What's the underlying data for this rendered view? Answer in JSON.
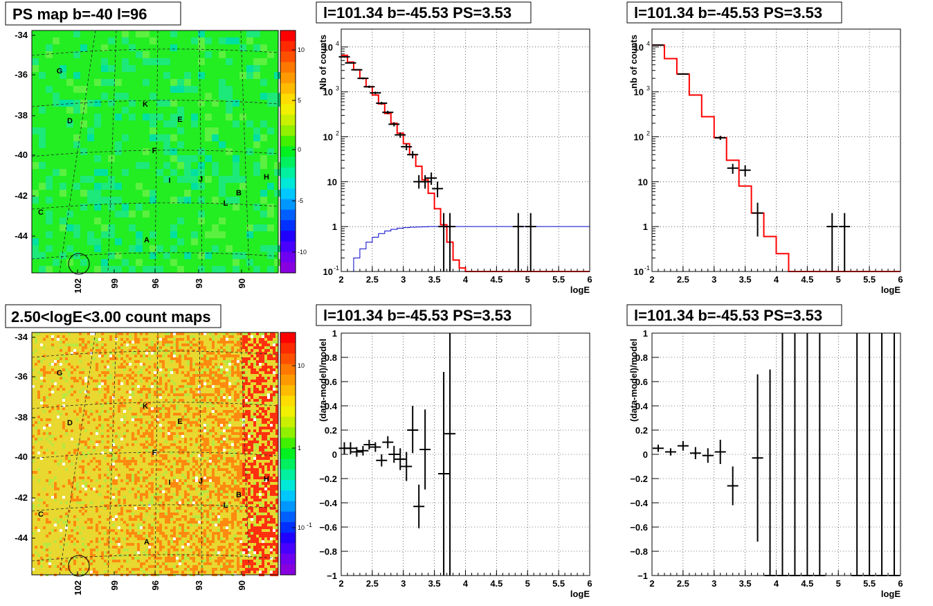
{
  "panels": {
    "map_top_title": "PS map b=-40 l=96",
    "map_bottom_title": "2.50<logE<3.00 count maps",
    "spec_title": "l=101.34 b=-45.53 PS=3.53"
  },
  "map": {
    "y_ticks": [
      "-34",
      "-36",
      "-38",
      "-40",
      "-42",
      "-44"
    ],
    "x_ticks": [
      "102",
      "99",
      "96",
      "93",
      "90"
    ],
    "source_labels": [
      {
        "label": "G"
      },
      {
        "label": "D"
      },
      {
        "label": "K"
      },
      {
        "label": "E"
      },
      {
        "label": "F"
      },
      {
        "label": "I"
      },
      {
        "label": "J"
      },
      {
        "label": "H"
      },
      {
        "label": "B"
      },
      {
        "label": "L"
      },
      {
        "label": "C"
      },
      {
        "label": "A"
      }
    ],
    "top_colorbar_ticks": [
      "10",
      "5",
      "0",
      "-5",
      "-10"
    ],
    "bottom_colorbar_ticks": [
      "10",
      "1",
      "10",
      "-1"
    ],
    "top_color": "#22ee22",
    "bottom_color": "#e8d830"
  },
  "chart_data": [
    {
      "type": "line",
      "title": "l=101.34 b=-45.53 PS=3.53",
      "xlabel": "logE",
      "ylabel": "Nb of counts",
      "yscale": "log",
      "xlim": [
        2,
        6
      ],
      "ylim": [
        0.1,
        25000
      ],
      "x_ticks": [
        "2",
        "2.5",
        "3",
        "3.5",
        "4",
        "4.5",
        "5",
        "5.5",
        "6"
      ],
      "y_ticks": [
        "10^{-1}",
        "1",
        "10",
        "10^{2}",
        "10^{3}",
        "10^{4}"
      ],
      "grid": true,
      "series": [
        {
          "color": "#ff0000",
          "kind": "step",
          "bin_edges": [
            2,
            2.1,
            2.2,
            2.3,
            2.4,
            2.5,
            2.6,
            2.7,
            2.8,
            2.9,
            3.0,
            3.1,
            3.2,
            3.3,
            3.4,
            3.5,
            3.6,
            3.7,
            3.8,
            3.9,
            4.0,
            6.0
          ],
          "values": [
            6500,
            4600,
            3100,
            2000,
            1300,
            850,
            540,
            330,
            200,
            120,
            70,
            40,
            22,
            11,
            5.5,
            2.5,
            1.1,
            0.45,
            0.18,
            0.12,
            0.1
          ]
        },
        {
          "color": "#0000cc",
          "kind": "step",
          "bin_edges": [
            2.1,
            2.2,
            2.3,
            2.4,
            2.5,
            2.6,
            2.7,
            2.8,
            2.9,
            3.0,
            3.1,
            3.2,
            3.3,
            3.4,
            3.5,
            6.0
          ],
          "values": [
            0.1,
            0.2,
            0.32,
            0.45,
            0.58,
            0.7,
            0.8,
            0.87,
            0.92,
            0.95,
            0.97,
            0.98,
            0.99,
            1.0,
            1.0
          ]
        },
        {
          "color": "#000000",
          "kind": "points",
          "points": [
            {
              "x": 2.05,
              "y": 6000,
              "lo": 5800,
              "hi": 6200
            },
            {
              "x": 2.15,
              "y": 4400,
              "lo": 4250,
              "hi": 4550
            },
            {
              "x": 2.25,
              "y": 3100,
              "lo": 3000,
              "hi": 3200
            },
            {
              "x": 2.35,
              "y": 2000,
              "lo": 1900,
              "hi": 2100
            },
            {
              "x": 2.45,
              "y": 1300,
              "lo": 1220,
              "hi": 1380
            },
            {
              "x": 2.55,
              "y": 950,
              "lo": 890,
              "hi": 1010
            },
            {
              "x": 2.65,
              "y": 560,
              "lo": 520,
              "hi": 600
            },
            {
              "x": 2.75,
              "y": 350,
              "lo": 320,
              "hi": 380
            },
            {
              "x": 2.85,
              "y": 190,
              "lo": 170,
              "hi": 210
            },
            {
              "x": 2.95,
              "y": 110,
              "lo": 95,
              "hi": 125
            },
            {
              "x": 3.05,
              "y": 60,
              "lo": 50,
              "hi": 70
            },
            {
              "x": 3.15,
              "y": 40,
              "lo": 33,
              "hi": 48
            },
            {
              "x": 3.25,
              "y": 10,
              "lo": 7,
              "hi": 14
            },
            {
              "x": 3.35,
              "y": 10,
              "lo": 7,
              "hi": 14
            },
            {
              "x": 3.45,
              "y": 12,
              "lo": 8.5,
              "hi": 16
            },
            {
              "x": 3.55,
              "y": 7,
              "lo": 4.5,
              "hi": 10
            },
            {
              "x": 3.65,
              "y": 1,
              "lo": 0.1,
              "hi": 2
            },
            {
              "x": 3.75,
              "y": 1,
              "lo": 0.1,
              "hi": 2
            },
            {
              "x": 4.85,
              "y": 1,
              "lo": 0.1,
              "hi": 2
            },
            {
              "x": 5.05,
              "y": 1,
              "lo": 0.1,
              "hi": 2
            }
          ]
        }
      ]
    },
    {
      "type": "line",
      "title": "l=101.34 b=-45.53 PS=3.53",
      "xlabel": "logE",
      "ylabel": "nb of counts",
      "yscale": "log",
      "xlim": [
        2,
        6
      ],
      "ylim": [
        0.1,
        25000
      ],
      "x_ticks": [
        "2",
        "2.5",
        "3",
        "3.5",
        "4",
        "4.5",
        "5",
        "5.5",
        "6"
      ],
      "y_ticks": [
        "10^{-1}",
        "1",
        "10",
        "10^{2}",
        "10^{3}",
        "10^{4}"
      ],
      "grid": true,
      "series": [
        {
          "color": "#ff0000",
          "kind": "step",
          "bin_edges": [
            2,
            2.2,
            2.4,
            2.6,
            2.8,
            3.0,
            3.2,
            3.4,
            3.6,
            3.8,
            4.0,
            4.2,
            6.0
          ],
          "values": [
            11000,
            5500,
            2500,
            850,
            280,
            95,
            30,
            8,
            2,
            0.6,
            0.25,
            0.1
          ]
        },
        {
          "color": "#000000",
          "kind": "points",
          "points": [
            {
              "x": 2.1,
              "y": 11000,
              "lo": 10800,
              "hi": 11200
            },
            {
              "x": 2.5,
              "y": 2500,
              "lo": 2400,
              "hi": 2600
            },
            {
              "x": 3.1,
              "y": 95,
              "lo": 85,
              "hi": 105
            },
            {
              "x": 3.3,
              "y": 20,
              "lo": 15,
              "hi": 25
            },
            {
              "x": 3.5,
              "y": 18,
              "lo": 13,
              "hi": 23
            },
            {
              "x": 3.7,
              "y": 2,
              "lo": 0.6,
              "hi": 3.4
            },
            {
              "x": 4.9,
              "y": 1,
              "lo": 0.1,
              "hi": 2
            },
            {
              "x": 5.1,
              "y": 1,
              "lo": 0.1,
              "hi": 2
            }
          ]
        }
      ]
    },
    {
      "type": "scatter",
      "title": "l=101.34 b=-45.53 PS=3.53",
      "xlabel": "logE",
      "ylabel": "(data-model)/model",
      "xlim": [
        2,
        6
      ],
      "ylim": [
        -1,
        1
      ],
      "x_ticks": [
        "2",
        "2.5",
        "3",
        "3.5",
        "4",
        "4.5",
        "5",
        "5.5",
        "6"
      ],
      "y_ticks": [
        "−1",
        "−0.8",
        "−0.6",
        "−0.4",
        "−0.2",
        "0",
        "0.2",
        "0.4",
        "0.6",
        "0.8",
        "1"
      ],
      "grid": true,
      "series": [
        {
          "color": "#000000",
          "kind": "points",
          "points": [
            {
              "x": 2.05,
              "y": 0.05,
              "lo": 0.0,
              "hi": 0.1
            },
            {
              "x": 2.15,
              "y": 0.05,
              "lo": 0.0,
              "hi": 0.1
            },
            {
              "x": 2.25,
              "y": 0.02,
              "lo": -0.02,
              "hi": 0.06
            },
            {
              "x": 2.35,
              "y": 0.03,
              "lo": -0.01,
              "hi": 0.07
            },
            {
              "x": 2.45,
              "y": 0.08,
              "lo": 0.04,
              "hi": 0.12
            },
            {
              "x": 2.55,
              "y": 0.06,
              "lo": 0.02,
              "hi": 0.1
            },
            {
              "x": 2.65,
              "y": -0.05,
              "lo": -0.1,
              "hi": 0.0
            },
            {
              "x": 2.75,
              "y": 0.1,
              "lo": 0.05,
              "hi": 0.15
            },
            {
              "x": 2.85,
              "y": 0.0,
              "lo": -0.07,
              "hi": 0.07
            },
            {
              "x": 2.95,
              "y": -0.04,
              "lo": -0.13,
              "hi": 0.05
            },
            {
              "x": 3.05,
              "y": -0.1,
              "lo": -0.22,
              "hi": 0.02
            },
            {
              "x": 3.15,
              "y": 0.2,
              "lo": 0.01,
              "hi": 0.4
            },
            {
              "x": 3.25,
              "y": -0.43,
              "lo": -0.61,
              "hi": -0.25
            },
            {
              "x": 3.35,
              "y": 0.04,
              "lo": -0.29,
              "hi": 0.37
            },
            {
              "x": 3.65,
              "y": -0.16,
              "lo": -1.0,
              "hi": 0.68
            },
            {
              "x": 3.75,
              "y": 0.17,
              "lo": -1.0,
              "hi": 1.0
            }
          ]
        }
      ]
    },
    {
      "type": "scatter",
      "title": "l=101.34 b=-45.53 PS=3.53",
      "xlabel": "logE",
      "ylabel": "(data-model)/model",
      "xlim": [
        2,
        6
      ],
      "ylim": [
        -1,
        1
      ],
      "x_ticks": [
        "2",
        "2.5",
        "3",
        "3.5",
        "4",
        "4.5",
        "5",
        "5.5",
        "6"
      ],
      "y_ticks": [
        "−1",
        "−0.8",
        "−0.6",
        "−0.4",
        "−0.2",
        "0",
        "0.2",
        "0.4",
        "0.6",
        "0.8",
        "1"
      ],
      "grid": true,
      "series": [
        {
          "color": "#000000",
          "kind": "points",
          "points": [
            {
              "x": 2.1,
              "y": 0.05,
              "lo": 0.02,
              "hi": 0.08
            },
            {
              "x": 2.3,
              "y": 0.02,
              "lo": -0.01,
              "hi": 0.05
            },
            {
              "x": 2.5,
              "y": 0.07,
              "lo": 0.03,
              "hi": 0.11
            },
            {
              "x": 2.7,
              "y": 0.01,
              "lo": -0.04,
              "hi": 0.06
            },
            {
              "x": 2.9,
              "y": -0.01,
              "lo": -0.07,
              "hi": 0.05
            },
            {
              "x": 3.1,
              "y": 0.02,
              "lo": -0.08,
              "hi": 0.12
            },
            {
              "x": 3.3,
              "y": -0.26,
              "lo": -0.42,
              "hi": -0.1
            },
            {
              "x": 3.7,
              "y": -0.03,
              "lo": -0.72,
              "hi": 0.66
            },
            {
              "x": 3.9,
              "y": -1.0,
              "lo": -1.0,
              "hi": 0.7
            },
            {
              "x": 4.1,
              "y": -1.0,
              "lo": -1.0,
              "hi": 1.0
            },
            {
              "x": 4.3,
              "y": -1.0,
              "lo": -1.0,
              "hi": 1.0
            },
            {
              "x": 4.5,
              "y": -1.0,
              "lo": -1.0,
              "hi": 1.0
            },
            {
              "x": 4.7,
              "y": -1.0,
              "lo": -1.0,
              "hi": 1.0
            },
            {
              "x": 5.3,
              "y": -1.0,
              "lo": -1.0,
              "hi": 1.0
            },
            {
              "x": 5.5,
              "y": -1.0,
              "lo": -1.0,
              "hi": 1.0
            },
            {
              "x": 5.7,
              "y": -1.0,
              "lo": -1.0,
              "hi": 1.0
            },
            {
              "x": 5.9,
              "y": -1.0,
              "lo": -1.0,
              "hi": 1.0
            }
          ]
        }
      ]
    }
  ]
}
